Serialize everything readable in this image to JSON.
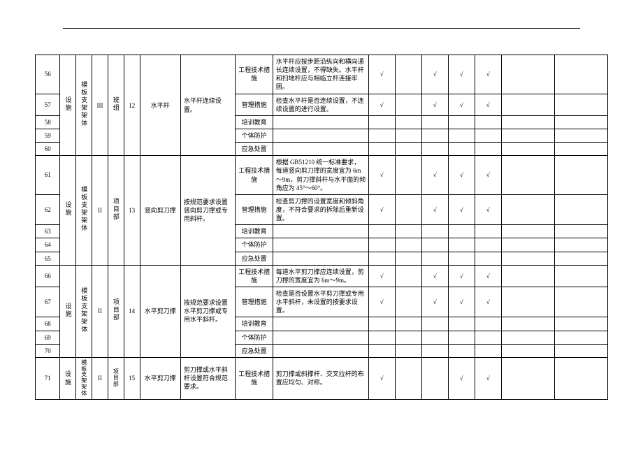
{
  "check": "√",
  "labels": {
    "shishi": "设施",
    "mobanzhijia": "模板支架架体",
    "III": "III",
    "II": "II",
    "banzu": "班组",
    "xiangmubu": "项目部",
    "n12": "12",
    "n13": "13",
    "n14": "14",
    "n15": "15",
    "shuipinggan": "水平杆",
    "shuxiangjian": "竖向剪刀撑",
    "shuipingjian": "水平剪刀撑",
    "req12": "水平杆连续设置。",
    "req13": "按规范要求设置竖向剪刀撑或专用斜杆。",
    "req14": "按规范要求设置水平剪刀撑或专用水平斜杆。",
    "req15": "剪刀撑或水平斜杆设置符合规范要求。",
    "m_gcjs": "工程技术措施",
    "m_glcs": "管理措施",
    "m_pxjy": "培训教育",
    "m_gtfh": "个体防护",
    "m_yjcz": "应急处置"
  },
  "desc": {
    "r56": "水平杆应按步距沿纵向和横向通长连续设置，不得缺失。水平杆和扫地杆应与相临立杆连接牢固。",
    "r57": "检查水平杆是否连续设置，不连续设置的进行设置。",
    "r61": "根据 GB51210 统一标准要求，每道竖向剪刀撑的宽度宜为 6m～9m，剪刀撑斜杆与水平面的倾角应为 45°～60°。",
    "r62": "检查剪刀撑的设置宽度和倾斜角度，不符合要求的拆除后重新设置。",
    "r66": "每道水平剪刀撑应连续设置，剪刀撑的宽度宜为 6m～9m。",
    "r67": "检查是否设置水平剪刀撑或专用水平斜杆，未设置的按要求设置。",
    "r71": "剪刀撑或斜撑杆、交叉拉杆的布置应均匀、对称。"
  }
}
